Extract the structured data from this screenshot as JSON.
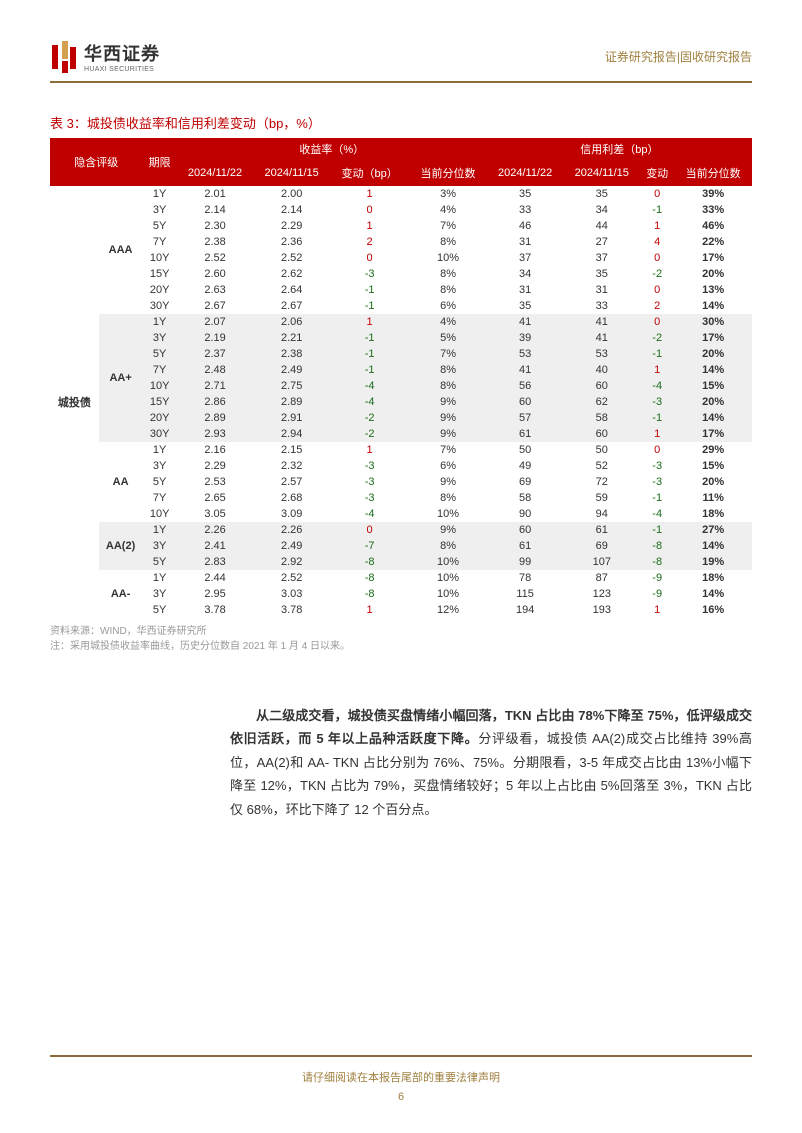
{
  "header": {
    "logo_cn": "华西证券",
    "logo_en": "HUAXI SECURITIES",
    "right_text": "证券研究报告|固收研究报告"
  },
  "table": {
    "title": "表 3：城投债收益率和信用利差变动（bp，%）",
    "header_row1": {
      "col1": "隐含评级",
      "col2": "期限",
      "yield_group": "收益率（%）",
      "spread_group": "信用利差（bp）"
    },
    "header_row2": {
      "date1": "2024/11/22",
      "date2": "2024/11/15",
      "change": "变动（bp）",
      "pctile": "当前分位数",
      "s_date1": "2024/11/22",
      "s_date2": "2024/11/15",
      "s_change": "变动",
      "s_pctile": "当前分位数"
    },
    "category": "城投债",
    "ratings": [
      {
        "name": "AAA",
        "shaded": false,
        "rows": [
          {
            "term": "1Y",
            "y1": "2.01",
            "y2": "2.00",
            "yc": 1,
            "yp": "3%",
            "s1": "35",
            "s2": "35",
            "sc": 0,
            "sp": "39%"
          },
          {
            "term": "3Y",
            "y1": "2.14",
            "y2": "2.14",
            "yc": 0,
            "yp": "4%",
            "s1": "33",
            "s2": "34",
            "sc": -1,
            "sp": "33%"
          },
          {
            "term": "5Y",
            "y1": "2.30",
            "y2": "2.29",
            "yc": 1,
            "yp": "7%",
            "s1": "46",
            "s2": "44",
            "sc": 1,
            "sp": "46%"
          },
          {
            "term": "7Y",
            "y1": "2.38",
            "y2": "2.36",
            "yc": 2,
            "yp": "8%",
            "s1": "31",
            "s2": "27",
            "sc": 4,
            "sp": "22%"
          },
          {
            "term": "10Y",
            "y1": "2.52",
            "y2": "2.52",
            "yc": 0,
            "yp": "10%",
            "s1": "37",
            "s2": "37",
            "sc": 0,
            "sp": "17%"
          },
          {
            "term": "15Y",
            "y1": "2.60",
            "y2": "2.62",
            "yc": -3,
            "yp": "8%",
            "s1": "34",
            "s2": "35",
            "sc": -2,
            "sp": "20%"
          },
          {
            "term": "20Y",
            "y1": "2.63",
            "y2": "2.64",
            "yc": -1,
            "yp": "8%",
            "s1": "31",
            "s2": "31",
            "sc": 0,
            "sp": "13%"
          },
          {
            "term": "30Y",
            "y1": "2.67",
            "y2": "2.67",
            "yc": -1,
            "yp": "6%",
            "s1": "35",
            "s2": "33",
            "sc": 2,
            "sp": "14%"
          }
        ]
      },
      {
        "name": "AA+",
        "shaded": true,
        "rows": [
          {
            "term": "1Y",
            "y1": "2.07",
            "y2": "2.06",
            "yc": 1,
            "yp": "4%",
            "s1": "41",
            "s2": "41",
            "sc": 0,
            "sp": "30%"
          },
          {
            "term": "3Y",
            "y1": "2.19",
            "y2": "2.21",
            "yc": -1,
            "yp": "5%",
            "s1": "39",
            "s2": "41",
            "sc": -2,
            "sp": "17%"
          },
          {
            "term": "5Y",
            "y1": "2.37",
            "y2": "2.38",
            "yc": -1,
            "yp": "7%",
            "s1": "53",
            "s2": "53",
            "sc": -1,
            "sp": "20%"
          },
          {
            "term": "7Y",
            "y1": "2.48",
            "y2": "2.49",
            "yc": -1,
            "yp": "8%",
            "s1": "41",
            "s2": "40",
            "sc": 1,
            "sp": "14%"
          },
          {
            "term": "10Y",
            "y1": "2.71",
            "y2": "2.75",
            "yc": -4,
            "yp": "8%",
            "s1": "56",
            "s2": "60",
            "sc": -4,
            "sp": "15%"
          },
          {
            "term": "15Y",
            "y1": "2.86",
            "y2": "2.89",
            "yc": -4,
            "yp": "9%",
            "s1": "60",
            "s2": "62",
            "sc": -3,
            "sp": "20%"
          },
          {
            "term": "20Y",
            "y1": "2.89",
            "y2": "2.91",
            "yc": -2,
            "yp": "9%",
            "s1": "57",
            "s2": "58",
            "sc": -1,
            "sp": "14%"
          },
          {
            "term": "30Y",
            "y1": "2.93",
            "y2": "2.94",
            "yc": -2,
            "yp": "9%",
            "s1": "61",
            "s2": "60",
            "sc": 1,
            "sp": "17%"
          }
        ]
      },
      {
        "name": "AA",
        "shaded": false,
        "rows": [
          {
            "term": "1Y",
            "y1": "2.16",
            "y2": "2.15",
            "yc": 1,
            "yp": "7%",
            "s1": "50",
            "s2": "50",
            "sc": 0,
            "sp": "29%"
          },
          {
            "term": "3Y",
            "y1": "2.29",
            "y2": "2.32",
            "yc": -3,
            "yp": "6%",
            "s1": "49",
            "s2": "52",
            "sc": -3,
            "sp": "15%"
          },
          {
            "term": "5Y",
            "y1": "2.53",
            "y2": "2.57",
            "yc": -3,
            "yp": "9%",
            "s1": "69",
            "s2": "72",
            "sc": -3,
            "sp": "20%"
          },
          {
            "term": "7Y",
            "y1": "2.65",
            "y2": "2.68",
            "yc": -3,
            "yp": "8%",
            "s1": "58",
            "s2": "59",
            "sc": -1,
            "sp": "11%"
          },
          {
            "term": "10Y",
            "y1": "3.05",
            "y2": "3.09",
            "yc": -4,
            "yp": "10%",
            "s1": "90",
            "s2": "94",
            "sc": -4,
            "sp": "18%"
          }
        ]
      },
      {
        "name": "AA(2)",
        "shaded": true,
        "rows": [
          {
            "term": "1Y",
            "y1": "2.26",
            "y2": "2.26",
            "yc": 0,
            "yp": "9%",
            "s1": "60",
            "s2": "61",
            "sc": -1,
            "sp": "27%"
          },
          {
            "term": "3Y",
            "y1": "2.41",
            "y2": "2.49",
            "yc": -7,
            "yp": "8%",
            "s1": "61",
            "s2": "69",
            "sc": -8,
            "sp": "14%"
          },
          {
            "term": "5Y",
            "y1": "2.83",
            "y2": "2.92",
            "yc": -8,
            "yp": "10%",
            "s1": "99",
            "s2": "107",
            "sc": -8,
            "sp": "19%"
          }
        ]
      },
      {
        "name": "AA-",
        "shaded": false,
        "rows": [
          {
            "term": "1Y",
            "y1": "2.44",
            "y2": "2.52",
            "yc": -8,
            "yp": "10%",
            "s1": "78",
            "s2": "87",
            "sc": -9,
            "sp": "18%"
          },
          {
            "term": "3Y",
            "y1": "2.95",
            "y2": "3.03",
            "yc": -8,
            "yp": "10%",
            "s1": "115",
            "s2": "123",
            "sc": -9,
            "sp": "14%"
          },
          {
            "term": "5Y",
            "y1": "3.78",
            "y2": "3.78",
            "yc": 1,
            "yp": "12%",
            "s1": "194",
            "s2": "193",
            "sc": 1,
            "sp": "16%"
          }
        ]
      }
    ]
  },
  "source": {
    "line1": "资料来源：WIND，华西证券研究所",
    "line2": "注：采用城投债收益率曲线，历史分位数自 2021 年 1 月 4 日以来。"
  },
  "body": {
    "p1_bold": "从二级成交看，城投债买盘情绪小幅回落，TKN 占比由 78%下降至 75%，低评级成交依旧活跃，而 5 年以上品种活跃度下降。",
    "p1_rest": "分评级看，城投债 AA(2)成交占比维持 39%高位，AA(2)和 AA- TKN 占比分别为 76%、75%。分期限看，3-5 年成交占比由 13%小幅下降至 12%，TKN 占比为 79%，买盘情绪较好；5 年以上占比由 5%回落至 3%，TKN 占比仅 68%，环比下降了 12 个百分点。"
  },
  "footer": {
    "text": "请仔细阅读在本报告尾部的重要法律声明",
    "page": "6"
  },
  "colors": {
    "header_bg": "#c00000",
    "accent": "#8a6d3b",
    "pos": "#c00000",
    "neg": "#1a6b1a",
    "shade": "#efefef"
  }
}
